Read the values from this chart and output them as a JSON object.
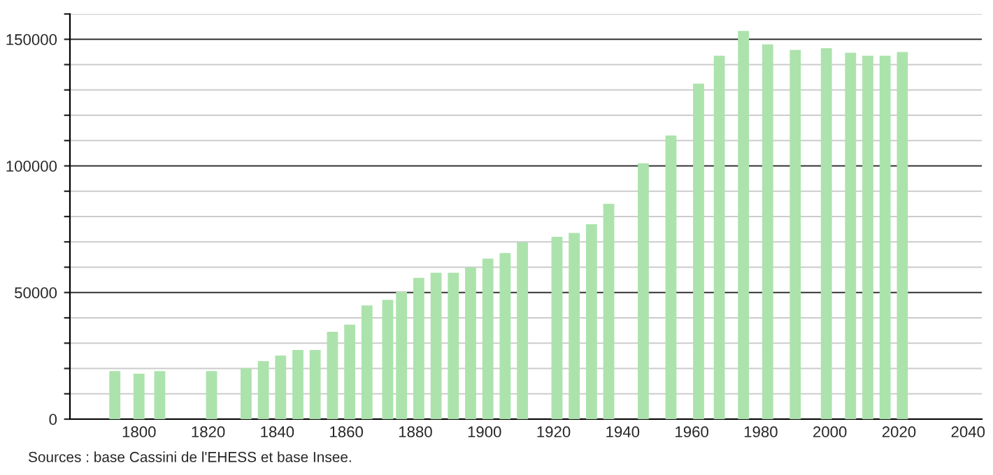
{
  "chart_data": {
    "type": "bar",
    "x": [
      1793,
      1800,
      1806,
      1821,
      1831,
      1836,
      1841,
      1846,
      1851,
      1856,
      1861,
      1866,
      1872,
      1876,
      1881,
      1886,
      1891,
      1896,
      1901,
      1906,
      1911,
      1921,
      1926,
      1931,
      1936,
      1946,
      1954,
      1962,
      1968,
      1975,
      1982,
      1990,
      1999,
      2006,
      2011,
      2016,
      2021
    ],
    "values": [
      19000,
      17900,
      19000,
      19000,
      20100,
      22900,
      25100,
      27300,
      27300,
      34500,
      37300,
      44900,
      47100,
      50200,
      55800,
      57800,
      57800,
      59900,
      63400,
      65600,
      69800,
      72000,
      73500,
      77000,
      85000,
      101000,
      112000,
      132500,
      143500,
      153300,
      148000,
      145800,
      146500,
      144700,
      143500,
      143500,
      145000
    ],
    "color": "#ace3ac",
    "xlim": [
      1780,
      2044
    ],
    "xticks": [
      1800,
      1820,
      1840,
      1860,
      1880,
      1900,
      1920,
      1940,
      1960,
      1980,
      2000,
      2020,
      2040
    ],
    "ylim": [
      0,
      160000
    ],
    "yticks": [
      0,
      {
        "value": 10000,
        "label": null
      },
      {
        "value": 20000,
        "label": null
      },
      {
        "value": 30000,
        "label": null
      },
      {
        "value": 40000,
        "label": null
      },
      50000,
      {
        "value": 60000,
        "label": null
      },
      {
        "value": 70000,
        "label": null
      },
      {
        "value": 80000,
        "label": null
      },
      {
        "value": 90000,
        "label": null
      },
      100000,
      {
        "value": 110000,
        "label": null
      },
      {
        "value": 120000,
        "label": null
      },
      {
        "value": 130000,
        "label": null
      },
      {
        "value": 140000,
        "label": null
      },
      150000,
      {
        "value": 160000,
        "label": null
      }
    ],
    "grid": "y",
    "annotations": [
      "Sources : base Cassini de l'EHESS et base Insee."
    ]
  }
}
